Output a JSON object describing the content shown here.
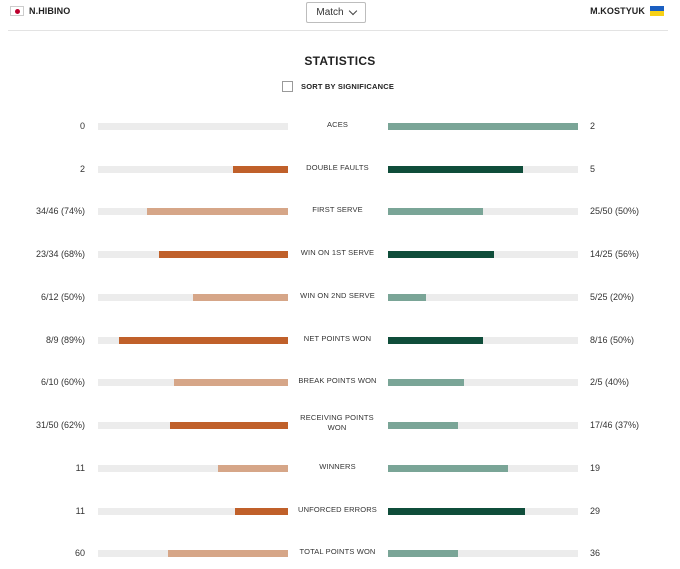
{
  "header": {
    "left_player": "N.HIBINO",
    "right_player": "M.KOSTYUK",
    "dropdown": {
      "selected": "Match"
    }
  },
  "title": "STATISTICS",
  "sort": {
    "label": "SORT BY SIGNIFICANCE",
    "checked": false
  },
  "colors": {
    "left_strong": "#c0602a",
    "left_light": "#d6a688",
    "right_strong": "#0f4d3a",
    "right_light": "#7aa597",
    "track": "#ececec"
  },
  "stats": [
    {
      "label": "ACES",
      "left": "0",
      "right": "2",
      "left_share": 0.0,
      "right_share": 1.0,
      "winner": "right"
    },
    {
      "label": "DOUBLE FAULTS",
      "left": "2",
      "right": "5",
      "left_share": 0.29,
      "right_share": 0.71,
      "winner": "right"
    },
    {
      "label": "FIRST SERVE",
      "left": "34/46 (74%)",
      "right": "25/50 (50%)",
      "left_share": 0.74,
      "right_share": 0.5,
      "winner": "left"
    },
    {
      "label": "WIN ON 1ST SERVE",
      "left": "23/34 (68%)",
      "right": "14/25 (56%)",
      "left_share": 0.68,
      "right_share": 0.56,
      "winner": "left"
    },
    {
      "label": "WIN ON 2ND SERVE",
      "left": "6/12 (50%)",
      "right": "5/25 (20%)",
      "left_share": 0.5,
      "right_share": 0.2,
      "winner": "left"
    },
    {
      "label": "NET POINTS WON",
      "left": "8/9 (89%)",
      "right": "8/16 (50%)",
      "left_share": 0.89,
      "right_share": 0.5,
      "winner": "left"
    },
    {
      "label": "BREAK POINTS WON",
      "left": "6/10 (60%)",
      "right": "2/5 (40%)",
      "left_share": 0.6,
      "right_share": 0.4,
      "winner": "left"
    },
    {
      "label": "RECEIVING POINTS WON",
      "left": "31/50 (62%)",
      "right": "17/46 (37%)",
      "left_share": 0.62,
      "right_share": 0.37,
      "winner": "left"
    },
    {
      "label": "WINNERS",
      "left": "11",
      "right": "19",
      "left_share": 0.37,
      "right_share": 0.63,
      "winner": "right"
    },
    {
      "label": "UNFORCED ERRORS",
      "left": "11",
      "right": "29",
      "left_share": 0.28,
      "right_share": 0.72,
      "winner": "right"
    },
    {
      "label": "TOTAL POINTS WON",
      "left": "60",
      "right": "36",
      "left_share": 0.63,
      "right_share": 0.37,
      "winner": "left"
    }
  ]
}
